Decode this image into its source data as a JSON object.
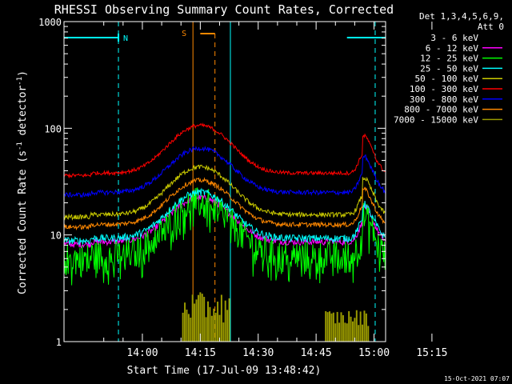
{
  "chart_data": {
    "type": "line",
    "title": "RHESSI Observing Summary Count Rates, Corrected",
    "xlabel": "Start Time (17-Jul-09 13:48:42)",
    "ylabel_main": "Corrected Count Rate (s",
    "ylabel_sup1": "-1",
    "ylabel_mid": " detector",
    "ylabel_sup2": "-1",
    "ylabel_end": ")",
    "yscale": "log",
    "ylim": [
      1,
      1000
    ],
    "xlim_minutes": [
      -20.3,
      63.0
    ],
    "x_ticks": [
      {
        "label": "14:00",
        "min": 0
      },
      {
        "label": "14:15",
        "min": 15
      },
      {
        "label": "14:30",
        "min": 30
      },
      {
        "label": "14:45",
        "min": 45
      },
      {
        "label": "15:00",
        "min": 60
      },
      {
        "label": "15:15",
        "min": 75
      }
    ],
    "y_ticks": [
      {
        "label": "1",
        "v": 1
      },
      {
        "label": "10",
        "v": 10
      },
      {
        "label": "100",
        "v": 100
      },
      {
        "label": "1000",
        "v": 1000
      }
    ],
    "legend_header": [
      "Det 1,3,4,5,6,9,",
      "Att 0"
    ],
    "series": [
      {
        "name": "3 - 6 keV",
        "color": "#000000"
      },
      {
        "name": "6 - 12 keV",
        "color": "#ff00ff"
      },
      {
        "name": "12 - 25 keV",
        "color": "#00ff00"
      },
      {
        "name": "25 - 50 keV",
        "color": "#00ffff"
      },
      {
        "name": "50 - 100 keV",
        "color": "#cccc00"
      },
      {
        "name": "100 - 300 keV",
        "color": "#ff0000"
      },
      {
        "name": "300 - 800 keV",
        "color": "#0000ff"
      },
      {
        "name": "800 - 7000 keV",
        "color": "#ff8800"
      },
      {
        "name": "7000 - 15000 keV",
        "color": "#999900"
      }
    ],
    "annotations": {
      "night_label": "N",
      "saa_label": "S",
      "night_color": "#00ffff",
      "saa_color": "#ff8800"
    },
    "timestamp": "15-Oct-2021 07:07"
  }
}
